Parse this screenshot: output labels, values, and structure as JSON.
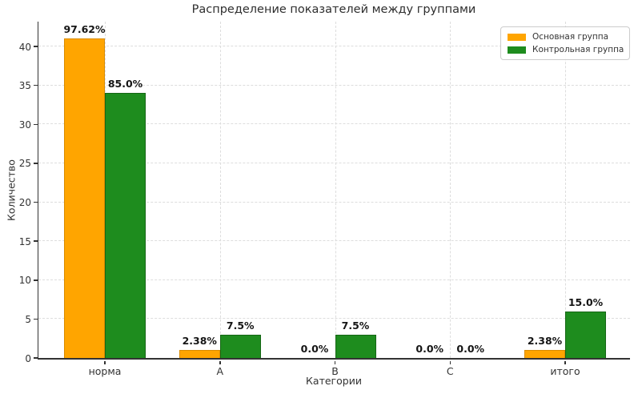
{
  "chart_data": {
    "type": "bar",
    "title": "Распределение показателей между группами",
    "xlabel": "Категории",
    "ylabel": "Количество",
    "categories": [
      "норма",
      "A",
      "B",
      "C",
      "итого"
    ],
    "series": [
      {
        "name": "Основная группа",
        "color": "#FFA500",
        "edge_color": "#d98c00",
        "values": [
          41,
          1,
          0,
          0,
          1
        ],
        "bar_labels": [
          "97.62%",
          "2.38%",
          "0.0%",
          "0.0%",
          "2.38%"
        ]
      },
      {
        "name": "Контрольная группа",
        "color": "#1E8C1E",
        "edge_color": "#156615",
        "values": [
          34,
          3,
          3,
          0,
          6
        ],
        "bar_labels": [
          "85.0%",
          "7.5%",
          "7.5%",
          "0.0%",
          "15.0%"
        ]
      }
    ],
    "yticks": [
      0,
      5,
      10,
      15,
      20,
      25,
      30,
      35,
      40
    ],
    "ylim": [
      0,
      43.4
    ],
    "grid": true,
    "grid_style": "dashed",
    "legend_position": "upper right",
    "background_color": "#ffffff",
    "axis_color": "#333333"
  }
}
